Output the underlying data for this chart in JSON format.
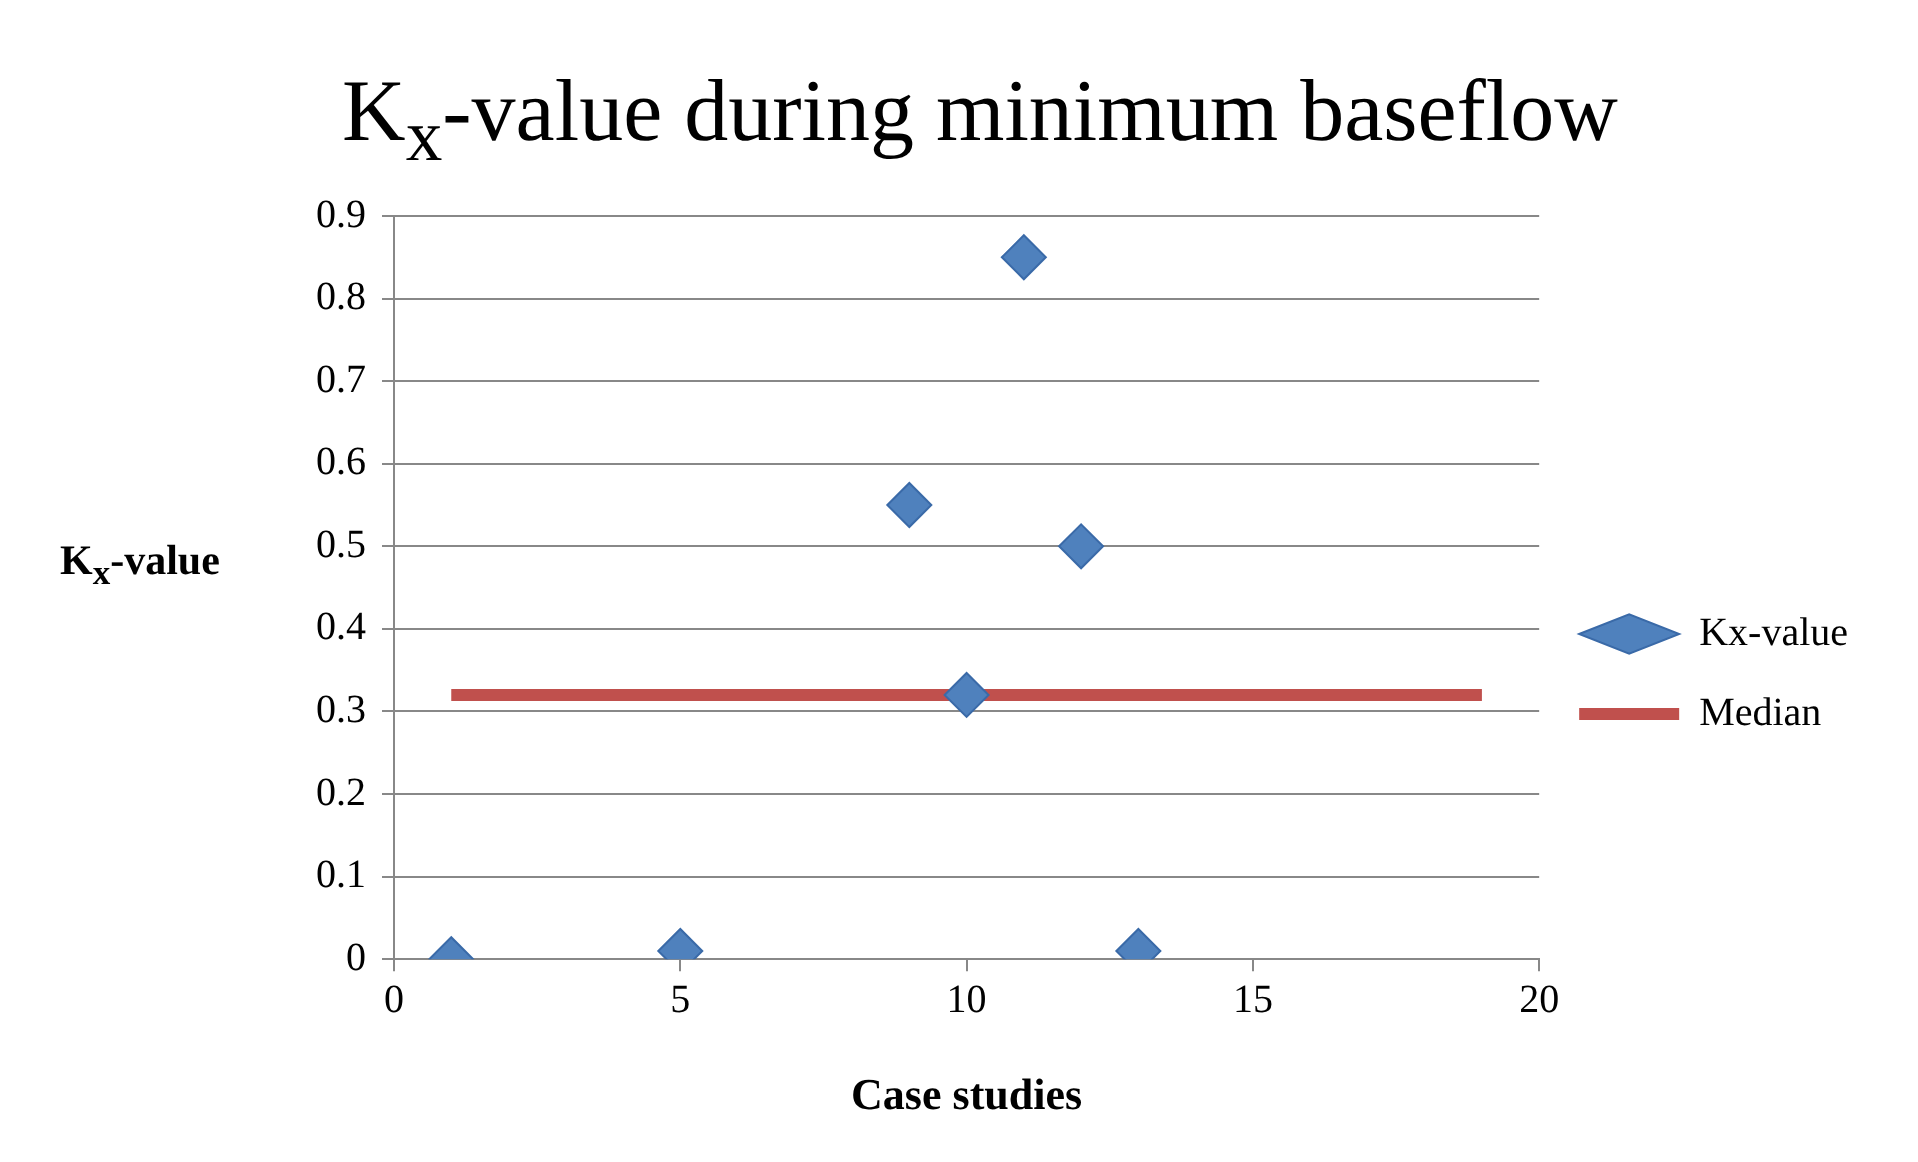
{
  "chart_data": {
    "type": "scatter",
    "title": "K$_{x}$-value during minimum baseflow",
    "xlabel": "Case studies",
    "ylabel": "K$_{x}$-value",
    "xlim": [
      0,
      20
    ],
    "xticks": [
      0,
      5,
      10,
      15,
      20
    ],
    "ylim": [
      0,
      0.9
    ],
    "yticks": [
      0,
      0.1,
      0.2,
      0.3,
      0.4,
      0.5,
      0.6,
      0.7,
      0.8,
      0.9
    ],
    "grid": "y",
    "legend": "right",
    "marker": "diamond",
    "series": [
      {
        "name": "Kx-value",
        "type": "scatter",
        "color": "#4f81bd",
        "x": [
          1,
          5,
          9,
          10,
          11,
          12,
          13
        ],
        "values": [
          0,
          0.01,
          0.55,
          0.32,
          0.85,
          0.5,
          0.01
        ]
      },
      {
        "name": "Median",
        "type": "line",
        "color": "#c0504d",
        "marker": "none",
        "x": [
          1,
          19
        ],
        "values": [
          0.32,
          0.32
        ]
      }
    ]
  }
}
